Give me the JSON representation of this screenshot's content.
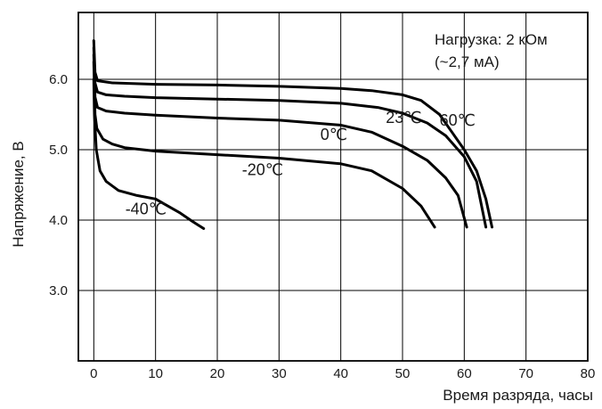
{
  "chart_data": {
    "type": "line",
    "title": "",
    "xlabel": "Время разряда, часы",
    "ylabel": "Напряжение, В",
    "xlim": [
      -2.5,
      80
    ],
    "ylim": [
      2.0,
      6.95
    ],
    "grid": true,
    "legend": "none",
    "x_ticks": [
      0,
      10,
      20,
      30,
      40,
      50,
      60,
      70,
      80
    ],
    "x_tick_labels": [
      "0",
      "10",
      "20",
      "30",
      "40",
      "50",
      "60",
      "70",
      "80"
    ],
    "y_ticks": [
      3.0,
      4.0,
      5.0,
      6.0
    ],
    "y_tick_labels": [
      "3.0",
      "4.0",
      "5.0",
      "6.0"
    ],
    "annotation": {
      "line1": "Нагрузка: 2 кОм",
      "line2": "(~2,7 мА)"
    },
    "series": [
      {
        "name": "60℃",
        "label_pos": [
          56.0,
          5.34
        ],
        "points": [
          [
            0,
            6.55
          ],
          [
            0.2,
            6.1
          ],
          [
            0.6,
            5.98
          ],
          [
            3,
            5.95
          ],
          [
            10,
            5.93
          ],
          [
            20,
            5.92
          ],
          [
            30,
            5.9
          ],
          [
            40,
            5.87
          ],
          [
            45,
            5.84
          ],
          [
            50,
            5.78
          ],
          [
            53,
            5.7
          ],
          [
            56,
            5.5
          ],
          [
            58,
            5.25
          ],
          [
            60,
            5.0
          ],
          [
            62,
            4.7
          ],
          [
            63.5,
            4.3
          ],
          [
            64.5,
            3.9
          ]
        ]
      },
      {
        "name": "23℃",
        "label_pos": [
          47.3,
          5.38
        ],
        "points": [
          [
            0,
            6.45
          ],
          [
            0.2,
            5.95
          ],
          [
            0.6,
            5.82
          ],
          [
            2,
            5.78
          ],
          [
            5,
            5.76
          ],
          [
            10,
            5.74
          ],
          [
            20,
            5.72
          ],
          [
            30,
            5.7
          ],
          [
            40,
            5.66
          ],
          [
            46,
            5.6
          ],
          [
            50,
            5.52
          ],
          [
            54,
            5.38
          ],
          [
            57,
            5.2
          ],
          [
            60,
            4.9
          ],
          [
            62,
            4.55
          ],
          [
            63.5,
            3.9
          ]
        ]
      },
      {
        "name": "0℃",
        "label_pos": [
          36.7,
          5.14
        ],
        "points": [
          [
            0,
            6.35
          ],
          [
            0.2,
            5.75
          ],
          [
            0.6,
            5.6
          ],
          [
            2,
            5.55
          ],
          [
            5,
            5.52
          ],
          [
            10,
            5.49
          ],
          [
            20,
            5.45
          ],
          [
            30,
            5.42
          ],
          [
            40,
            5.35
          ],
          [
            45,
            5.25
          ],
          [
            50,
            5.05
          ],
          [
            54,
            4.85
          ],
          [
            57,
            4.6
          ],
          [
            59,
            4.35
          ],
          [
            60.4,
            3.9
          ]
        ]
      },
      {
        "name": "-20℃",
        "label_pos": [
          24.0,
          4.64
        ],
        "points": [
          [
            0,
            6.25
          ],
          [
            0.2,
            5.5
          ],
          [
            0.5,
            5.3
          ],
          [
            1.5,
            5.15
          ],
          [
            3,
            5.08
          ],
          [
            5,
            5.03
          ],
          [
            10,
            4.98
          ],
          [
            20,
            4.93
          ],
          [
            30,
            4.88
          ],
          [
            40,
            4.8
          ],
          [
            45,
            4.7
          ],
          [
            50,
            4.45
          ],
          [
            53,
            4.2
          ],
          [
            55.2,
            3.9
          ]
        ]
      },
      {
        "name": "-40℃",
        "label_pos": [
          5.1,
          4.08
        ],
        "points": [
          [
            0,
            6.0
          ],
          [
            0.1,
            5.5
          ],
          [
            0.4,
            5.0
          ],
          [
            1,
            4.7
          ],
          [
            2,
            4.55
          ],
          [
            4,
            4.42
          ],
          [
            7,
            4.35
          ],
          [
            10,
            4.3
          ],
          [
            12,
            4.2
          ],
          [
            14,
            4.1
          ],
          [
            16,
            3.98
          ],
          [
            17.8,
            3.88
          ]
        ]
      }
    ]
  }
}
